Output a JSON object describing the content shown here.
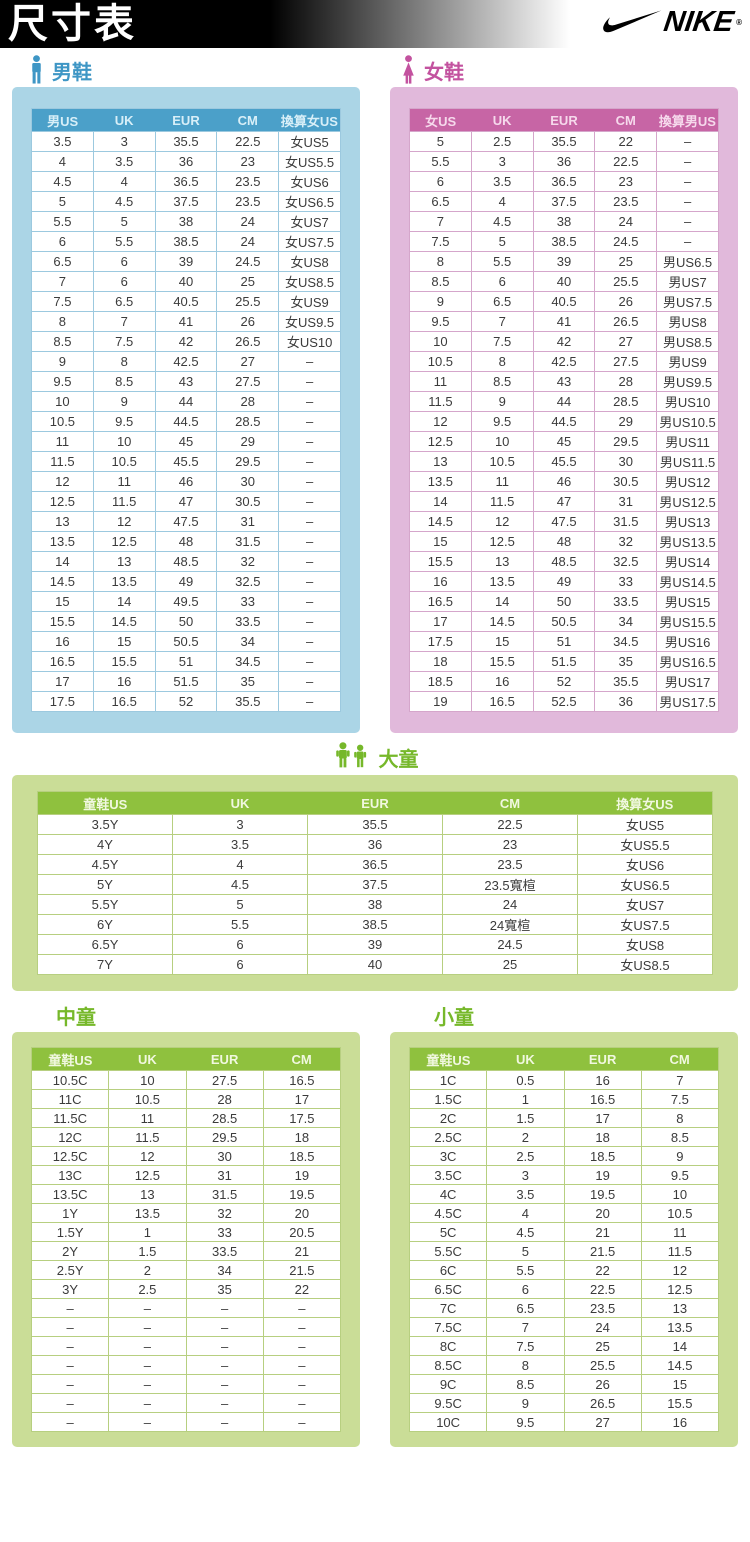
{
  "page": {
    "title": "尺寸表",
    "brand": "NIKE",
    "brand_mark": "®"
  },
  "theme": {
    "men": {
      "accent": "#3E96C5",
      "container": "#ABD5E6",
      "header-bg": "#4BA0C9",
      "header-text": "#D8EFF8",
      "border": "#9CC9DF"
    },
    "women": {
      "accent": "#C3529F",
      "container": "#E1B9DB",
      "header-bg": "#C765A5",
      "header-text": "#F6D9EC",
      "border": "#D5A6CB"
    },
    "kids": {
      "accent": "#76B82A",
      "container": "#CADD97",
      "header-bg": "#8FC13E",
      "header-text": "#F1F8E0",
      "border": "#B7CF80"
    }
  },
  "sections": {
    "men": {
      "label": "男鞋",
      "headers": [
        "男US",
        "UK",
        "EUR",
        "CM",
        "換算女US"
      ],
      "rows": [
        [
          "3.5",
          "3",
          "35.5",
          "22.5",
          "女US5"
        ],
        [
          "4",
          "3.5",
          "36",
          "23",
          "女US5.5"
        ],
        [
          "4.5",
          "4",
          "36.5",
          "23.5",
          "女US6"
        ],
        [
          "5",
          "4.5",
          "37.5",
          "23.5",
          "女US6.5"
        ],
        [
          "5.5",
          "5",
          "38",
          "24",
          "女US7"
        ],
        [
          "6",
          "5.5",
          "38.5",
          "24",
          "女US7.5"
        ],
        [
          "6.5",
          "6",
          "39",
          "24.5",
          "女US8"
        ],
        [
          "7",
          "6",
          "40",
          "25",
          "女US8.5"
        ],
        [
          "7.5",
          "6.5",
          "40.5",
          "25.5",
          "女US9"
        ],
        [
          "8",
          "7",
          "41",
          "26",
          "女US9.5"
        ],
        [
          "8.5",
          "7.5",
          "42",
          "26.5",
          "女US10"
        ],
        [
          "9",
          "8",
          "42.5",
          "27",
          "–"
        ],
        [
          "9.5",
          "8.5",
          "43",
          "27.5",
          "–"
        ],
        [
          "10",
          "9",
          "44",
          "28",
          "–"
        ],
        [
          "10.5",
          "9.5",
          "44.5",
          "28.5",
          "–"
        ],
        [
          "11",
          "10",
          "45",
          "29",
          "–"
        ],
        [
          "11.5",
          "10.5",
          "45.5",
          "29.5",
          "–"
        ],
        [
          "12",
          "11",
          "46",
          "30",
          "–"
        ],
        [
          "12.5",
          "11.5",
          "47",
          "30.5",
          "–"
        ],
        [
          "13",
          "12",
          "47.5",
          "31",
          "–"
        ],
        [
          "13.5",
          "12.5",
          "48",
          "31.5",
          "–"
        ],
        [
          "14",
          "13",
          "48.5",
          "32",
          "–"
        ],
        [
          "14.5",
          "13.5",
          "49",
          "32.5",
          "–"
        ],
        [
          "15",
          "14",
          "49.5",
          "33",
          "–"
        ],
        [
          "15.5",
          "14.5",
          "50",
          "33.5",
          "–"
        ],
        [
          "16",
          "15",
          "50.5",
          "34",
          "–"
        ],
        [
          "16.5",
          "15.5",
          "51",
          "34.5",
          "–"
        ],
        [
          "17",
          "16",
          "51.5",
          "35",
          "–"
        ],
        [
          "17.5",
          "16.5",
          "52",
          "35.5",
          "–"
        ]
      ]
    },
    "women": {
      "label": "女鞋",
      "headers": [
        "女US",
        "UK",
        "EUR",
        "CM",
        "換算男US"
      ],
      "rows": [
        [
          "5",
          "2.5",
          "35.5",
          "22",
          "–"
        ],
        [
          "5.5",
          "3",
          "36",
          "22.5",
          "–"
        ],
        [
          "6",
          "3.5",
          "36.5",
          "23",
          "–"
        ],
        [
          "6.5",
          "4",
          "37.5",
          "23.5",
          "–"
        ],
        [
          "7",
          "4.5",
          "38",
          "24",
          "–"
        ],
        [
          "7.5",
          "5",
          "38.5",
          "24.5",
          "–"
        ],
        [
          "8",
          "5.5",
          "39",
          "25",
          "男US6.5"
        ],
        [
          "8.5",
          "6",
          "40",
          "25.5",
          "男US7"
        ],
        [
          "9",
          "6.5",
          "40.5",
          "26",
          "男US7.5"
        ],
        [
          "9.5",
          "7",
          "41",
          "26.5",
          "男US8"
        ],
        [
          "10",
          "7.5",
          "42",
          "27",
          "男US8.5"
        ],
        [
          "10.5",
          "8",
          "42.5",
          "27.5",
          "男US9"
        ],
        [
          "11",
          "8.5",
          "43",
          "28",
          "男US9.5"
        ],
        [
          "11.5",
          "9",
          "44",
          "28.5",
          "男US10"
        ],
        [
          "12",
          "9.5",
          "44.5",
          "29",
          "男US10.5"
        ],
        [
          "12.5",
          "10",
          "45",
          "29.5",
          "男US11"
        ],
        [
          "13",
          "10.5",
          "45.5",
          "30",
          "男US11.5"
        ],
        [
          "13.5",
          "11",
          "46",
          "30.5",
          "男US12"
        ],
        [
          "14",
          "11.5",
          "47",
          "31",
          "男US12.5"
        ],
        [
          "14.5",
          "12",
          "47.5",
          "31.5",
          "男US13"
        ],
        [
          "15",
          "12.5",
          "48",
          "32",
          "男US13.5"
        ],
        [
          "15.5",
          "13",
          "48.5",
          "32.5",
          "男US14"
        ],
        [
          "16",
          "13.5",
          "49",
          "33",
          "男US14.5"
        ],
        [
          "16.5",
          "14",
          "50",
          "33.5",
          "男US15"
        ],
        [
          "17",
          "14.5",
          "50.5",
          "34",
          "男US15.5"
        ],
        [
          "17.5",
          "15",
          "51",
          "34.5",
          "男US16"
        ],
        [
          "18",
          "15.5",
          "51.5",
          "35",
          "男US16.5"
        ],
        [
          "18.5",
          "16",
          "52",
          "35.5",
          "男US17"
        ],
        [
          "19",
          "16.5",
          "52.5",
          "36",
          "男US17.5"
        ]
      ]
    },
    "bigkids": {
      "label": "大童",
      "headers": [
        "童鞋US",
        "UK",
        "EUR",
        "CM",
        "換算女US"
      ],
      "rows": [
        [
          "3.5Y",
          "3",
          "35.5",
          "22.5",
          "女US5"
        ],
        [
          "4Y",
          "3.5",
          "36",
          "23",
          "女US5.5"
        ],
        [
          "4.5Y",
          "4",
          "36.5",
          "23.5",
          "女US6"
        ],
        [
          "5Y",
          "4.5",
          "37.5",
          "23.5寬楦",
          "女US6.5"
        ],
        [
          "5.5Y",
          "5",
          "38",
          "24",
          "女US7"
        ],
        [
          "6Y",
          "5.5",
          "38.5",
          "24寬楦",
          "女US7.5"
        ],
        [
          "6.5Y",
          "6",
          "39",
          "24.5",
          "女US8"
        ],
        [
          "7Y",
          "6",
          "40",
          "25",
          "女US8.5"
        ]
      ]
    },
    "midkids": {
      "label": "中童",
      "headers": [
        "童鞋US",
        "UK",
        "EUR",
        "CM"
      ],
      "rows": [
        [
          "10.5C",
          "10",
          "27.5",
          "16.5"
        ],
        [
          "11C",
          "10.5",
          "28",
          "17"
        ],
        [
          "11.5C",
          "11",
          "28.5",
          "17.5"
        ],
        [
          "12C",
          "11.5",
          "29.5",
          "18"
        ],
        [
          "12.5C",
          "12",
          "30",
          "18.5"
        ],
        [
          "13C",
          "12.5",
          "31",
          "19"
        ],
        [
          "13.5C",
          "13",
          "31.5",
          "19.5"
        ],
        [
          "1Y",
          "13.5",
          "32",
          "20"
        ],
        [
          "1.5Y",
          "1",
          "33",
          "20.5"
        ],
        [
          "2Y",
          "1.5",
          "33.5",
          "21"
        ],
        [
          "2.5Y",
          "2",
          "34",
          "21.5"
        ],
        [
          "3Y",
          "2.5",
          "35",
          "22"
        ],
        [
          "–",
          "–",
          "–",
          "–"
        ],
        [
          "–",
          "–",
          "–",
          "–"
        ],
        [
          "–",
          "–",
          "–",
          "–"
        ],
        [
          "–",
          "–",
          "–",
          "–"
        ],
        [
          "–",
          "–",
          "–",
          "–"
        ],
        [
          "–",
          "–",
          "–",
          "–"
        ],
        [
          "–",
          "–",
          "–",
          "–"
        ]
      ]
    },
    "smallkids": {
      "label": "小童",
      "headers": [
        "童鞋US",
        "UK",
        "EUR",
        "CM"
      ],
      "rows": [
        [
          "1C",
          "0.5",
          "16",
          "7"
        ],
        [
          "1.5C",
          "1",
          "16.5",
          "7.5"
        ],
        [
          "2C",
          "1.5",
          "17",
          "8"
        ],
        [
          "2.5C",
          "2",
          "18",
          "8.5"
        ],
        [
          "3C",
          "2.5",
          "18.5",
          "9"
        ],
        [
          "3.5C",
          "3",
          "19",
          "9.5"
        ],
        [
          "4C",
          "3.5",
          "19.5",
          "10"
        ],
        [
          "4.5C",
          "4",
          "20",
          "10.5"
        ],
        [
          "5C",
          "4.5",
          "21",
          "11"
        ],
        [
          "5.5C",
          "5",
          "21.5",
          "11.5"
        ],
        [
          "6C",
          "5.5",
          "22",
          "12"
        ],
        [
          "6.5C",
          "6",
          "22.5",
          "12.5"
        ],
        [
          "7C",
          "6.5",
          "23.5",
          "13"
        ],
        [
          "7.5C",
          "7",
          "24",
          "13.5"
        ],
        [
          "8C",
          "7.5",
          "25",
          "14"
        ],
        [
          "8.5C",
          "8",
          "25.5",
          "14.5"
        ],
        [
          "9C",
          "8.5",
          "26",
          "15"
        ],
        [
          "9.5C",
          "9",
          "26.5",
          "15.5"
        ],
        [
          "10C",
          "9.5",
          "27",
          "16"
        ]
      ]
    }
  }
}
